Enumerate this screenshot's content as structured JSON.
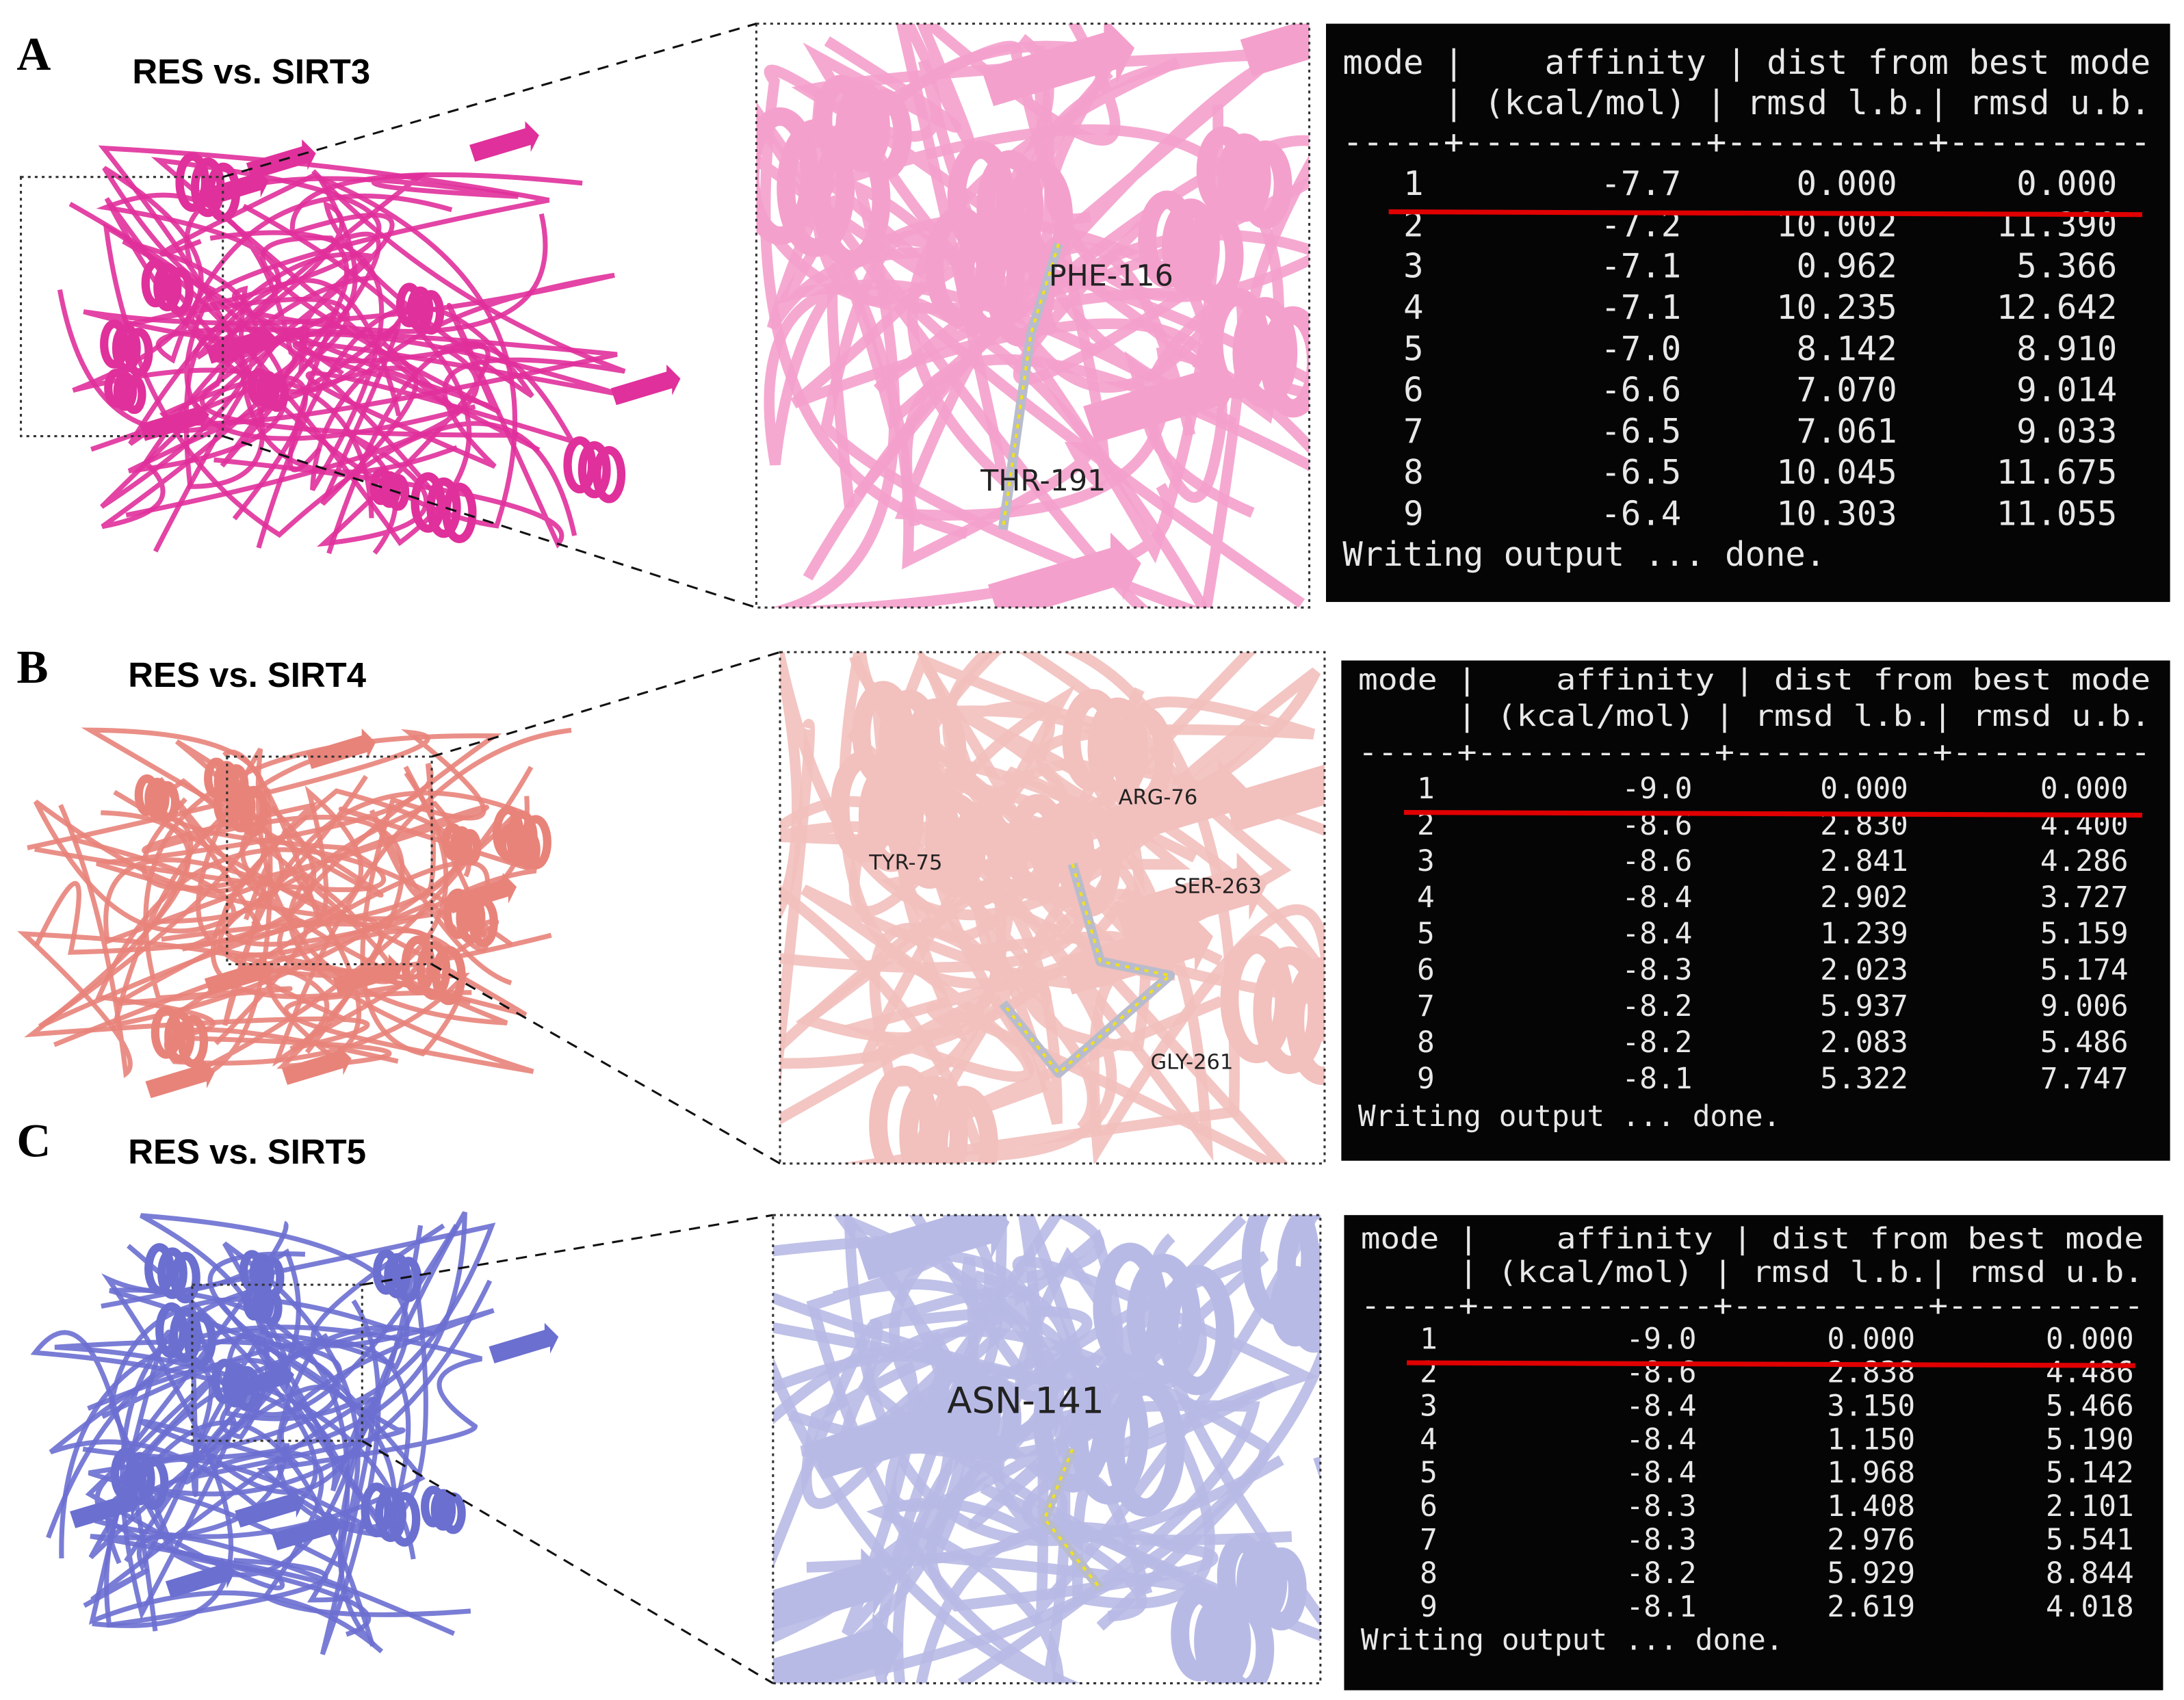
{
  "panels": [
    {
      "label": "A",
      "title": "RES vs. SIRT3",
      "residues": [
        "PHE-116",
        "THR-191"
      ],
      "table": {
        "header": [
          "mode |    affinity | dist from best mode",
          "     | (kcal/mol) | rmsd l.b.| rmsd u.b.",
          "-----+------------+----------+----------"
        ],
        "rows": [
          [
            "1",
            "-7.7",
            "0.000",
            "0.000"
          ],
          [
            "2",
            "-7.2",
            "10.002",
            "11.390"
          ],
          [
            "3",
            "-7.1",
            "0.962",
            "5.366"
          ],
          [
            "4",
            "-7.1",
            "10.235",
            "12.642"
          ],
          [
            "5",
            "-7.0",
            "8.142",
            "8.910"
          ],
          [
            "6",
            "-6.6",
            "7.070",
            "9.014"
          ],
          [
            "7",
            "-6.5",
            "7.061",
            "9.033"
          ],
          [
            "8",
            "-6.5",
            "10.045",
            "11.675"
          ],
          [
            "9",
            "-6.4",
            "10.303",
            "11.055"
          ]
        ],
        "footer": "Writing output ... done."
      }
    },
    {
      "label": "B",
      "title": "RES vs. SIRT4",
      "residues": [
        "TYR-75",
        "ARG-76",
        "SER-263",
        "GLY-261"
      ],
      "table": {
        "header": [
          "mode |    affinity | dist from best mode",
          "     | (kcal/mol) | rmsd l.b.| rmsd u.b.",
          "-----+------------+----------+----------"
        ],
        "rows": [
          [
            "1",
            "-9.0",
            "0.000",
            "0.000"
          ],
          [
            "2",
            "-8.6",
            "2.830",
            "4.400"
          ],
          [
            "3",
            "-8.6",
            "2.841",
            "4.286"
          ],
          [
            "4",
            "-8.4",
            "2.902",
            "3.727"
          ],
          [
            "5",
            "-8.4",
            "1.239",
            "5.159"
          ],
          [
            "6",
            "-8.3",
            "2.023",
            "5.174"
          ],
          [
            "7",
            "-8.2",
            "5.937",
            "9.006"
          ],
          [
            "8",
            "-8.2",
            "2.083",
            "5.486"
          ],
          [
            "9",
            "-8.1",
            "5.322",
            "7.747"
          ]
        ],
        "footer": "Writing output ... done."
      }
    },
    {
      "label": "C",
      "title": "RES vs. SIRT5",
      "residues": [
        "ASN-141"
      ],
      "table": {
        "header": [
          "mode |    affinity | dist from best mode",
          "     | (kcal/mol) | rmsd l.b.| rmsd u.b.",
          "-----+------------+----------+----------"
        ],
        "rows": [
          [
            "1",
            "-9.0",
            "0.000",
            "0.000"
          ],
          [
            "2",
            "-8.6",
            "2.838",
            "4.486"
          ],
          [
            "3",
            "-8.4",
            "3.150",
            "5.466"
          ],
          [
            "4",
            "-8.4",
            "1.150",
            "5.190"
          ],
          [
            "5",
            "-8.4",
            "1.968",
            "5.142"
          ],
          [
            "6",
            "-8.3",
            "1.408",
            "2.101"
          ],
          [
            "7",
            "-8.3",
            "2.976",
            "5.541"
          ],
          [
            "8",
            "-8.2",
            "5.929",
            "8.844"
          ],
          [
            "9",
            "-8.1",
            "2.619",
            "4.018"
          ]
        ],
        "footer": "Writing output ... done."
      }
    }
  ]
}
